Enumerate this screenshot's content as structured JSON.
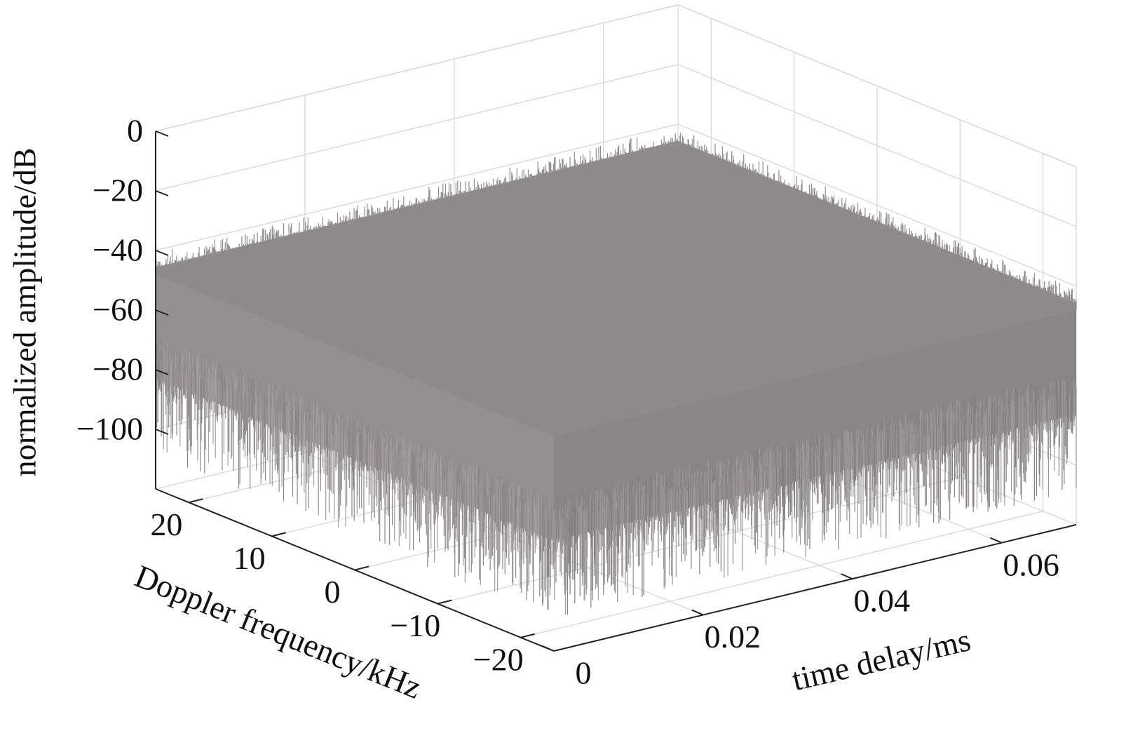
{
  "chart_data": {
    "type": "surface3d",
    "xlabel": "time delay/ms",
    "ylabel": "Doppler frequency/kHz",
    "zlabel": "normalized amplitude/dB",
    "xlim": [
      0,
      0.07
    ],
    "xticks": [
      0,
      0.02,
      0.04,
      0.06
    ],
    "ylim": [
      -24,
      24
    ],
    "yticks": [
      {
        "value": -20,
        "label": "−20"
      },
      {
        "value": -10,
        "label": "−10"
      },
      0,
      10,
      20
    ],
    "zlim": [
      -120,
      0
    ],
    "zticks": [
      {
        "value": -100,
        "label": "−100"
      },
      {
        "value": -80,
        "label": "−80"
      },
      {
        "value": -60,
        "label": "−60"
      },
      {
        "value": -40,
        "label": "−40"
      },
      {
        "value": -20,
        "label": "−20"
      },
      0
    ],
    "color": "#8f8a8c",
    "grid": true
  }
}
